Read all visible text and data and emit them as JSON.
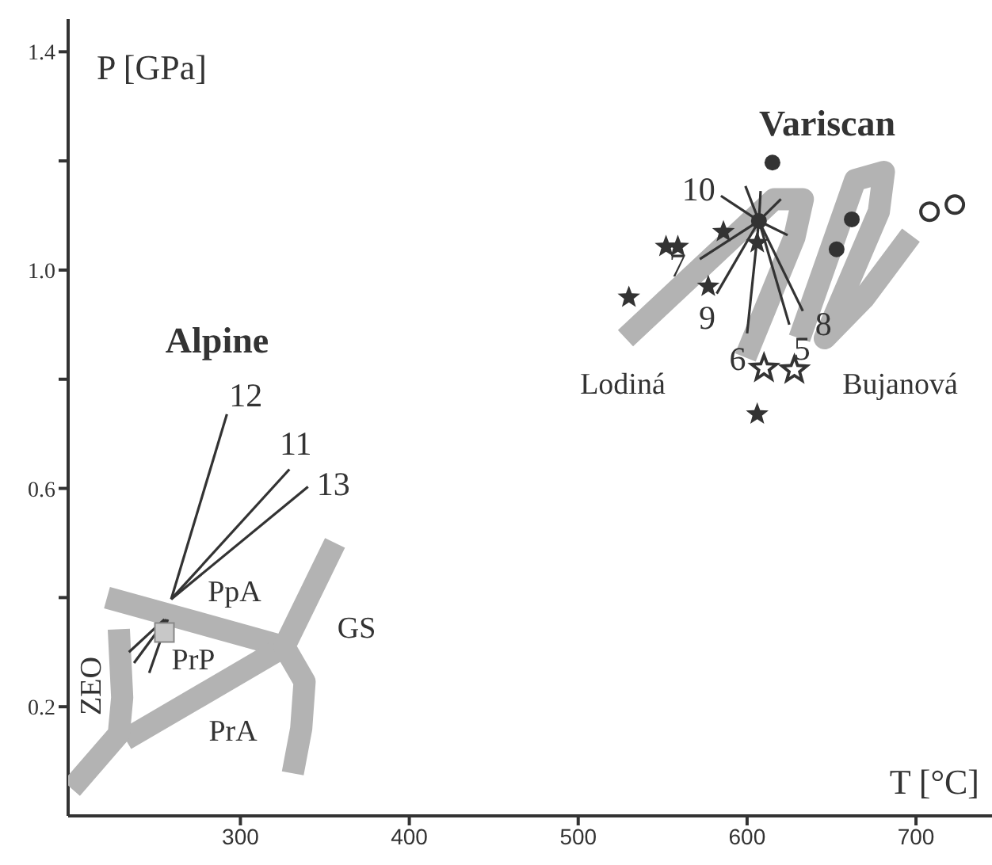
{
  "chart_data": {
    "type": "scatter",
    "xlabel": "T [°C]",
    "ylabel": "P [GPa]",
    "xlim": [
      198,
      745
    ],
    "ylim": [
      0,
      1.46
    ],
    "xticks": [
      300,
      400,
      500,
      600,
      700
    ],
    "yticks": [
      {
        "value": 0.2,
        "label": "0.2"
      },
      {
        "value": 0.4,
        "label": null
      },
      {
        "value": 0.6,
        "label": "0.6"
      },
      {
        "value": 0.8,
        "label": null
      },
      {
        "value": 1.0,
        "label": "1.0"
      },
      {
        "value": 1.2,
        "label": null
      },
      {
        "value": 1.4,
        "label": "1.4"
      }
    ],
    "series": [
      {
        "type": "line",
        "color": "#b3b3b3",
        "x": [
          221,
          326
        ],
        "values": [
          0.4,
          0.31
        ]
      },
      {
        "type": "line",
        "color": "#b3b3b3",
        "x": [
          232,
          326
        ],
        "values": [
          0.14,
          0.31
        ]
      },
      {
        "type": "line",
        "color": "#b3b3b3",
        "x": [
          356,
          326,
          338,
          336,
          331
        ],
        "values": [
          0.5,
          0.31,
          0.246,
          0.16,
          0.078
        ]
      },
      {
        "type": "line",
        "color": "#b3b3b3",
        "x": [
          228,
          230,
          228,
          200
        ],
        "values": [
          0.342,
          0.217,
          0.15,
          0.05
        ]
      },
      {
        "type": "line",
        "color": "#b3b3b3",
        "x": [
          528,
          616,
          633,
          628,
          599
        ],
        "values": [
          0.875,
          1.13,
          1.13,
          1.06,
          0.84
        ]
      },
      {
        "type": "line",
        "color": "#b3b3b3",
        "x": [
          631,
          664,
          681,
          678,
          646,
          669,
          697
        ],
        "values": [
          0.875,
          1.165,
          1.18,
          1.107,
          0.875,
          0.948,
          1.064
        ]
      },
      {
        "type": "line",
        "color": "#333333",
        "x": [
          607,
          584.5
        ],
        "values": [
          1.09,
          1.136
        ]
      },
      {
        "type": "line",
        "color": "#333333",
        "x": [
          607,
          572
        ],
        "values": [
          1.09,
          1.02
        ]
      },
      {
        "type": "line",
        "color": "#333333",
        "x": [
          607,
          582
        ],
        "values": [
          1.09,
          0.957
        ]
      },
      {
        "type": "line",
        "color": "#333333",
        "x": [
          607,
          600
        ],
        "values": [
          1.09,
          0.884
        ]
      },
      {
        "type": "line",
        "color": "#333333",
        "x": [
          607,
          625
        ],
        "values": [
          1.09,
          0.9
        ]
      },
      {
        "type": "line",
        "color": "#333333",
        "x": [
          607,
          633
        ],
        "values": [
          1.09,
          0.925
        ]
      },
      {
        "type": "line",
        "color": "#333333",
        "x": [
          607,
          599
        ],
        "values": [
          1.09,
          1.154
        ]
      },
      {
        "type": "line",
        "color": "#333333",
        "x": [
          607,
          608
        ],
        "values": [
          1.09,
          1.145
        ]
      },
      {
        "type": "line",
        "color": "#333333",
        "x": [
          607,
          620
        ],
        "values": [
          1.09,
          1.13
        ]
      },
      {
        "type": "line",
        "color": "#333333",
        "x": [
          607,
          624
        ],
        "values": [
          1.09,
          1.064
        ]
      },
      {
        "type": "line",
        "color": "#333333",
        "x": [
          259,
          292
        ],
        "values": [
          0.397,
          0.736
        ]
      },
      {
        "type": "line",
        "color": "#333333",
        "x": [
          259,
          329
        ],
        "values": [
          0.397,
          0.635
        ]
      },
      {
        "type": "line",
        "color": "#333333",
        "x": [
          259,
          340
        ],
        "values": [
          0.397,
          0.603
        ]
      },
      {
        "type": "line",
        "color": "#333333",
        "x": [
          255,
          234
        ],
        "values": [
          0.36,
          0.3
        ]
      },
      {
        "type": "line",
        "color": "#333333",
        "x": [
          256,
          237
        ],
        "values": [
          0.36,
          0.28
        ]
      },
      {
        "type": "line",
        "color": "#333333",
        "x": [
          257,
          246
        ],
        "values": [
          0.36,
          0.262
        ]
      },
      {
        "marker": "square",
        "color": "#c8c8c8",
        "x": [
          255
        ],
        "values": [
          0.336
        ]
      },
      {
        "marker": "circle",
        "color": "#333333",
        "x": [
          615,
          662,
          653,
          607
        ],
        "values": [
          1.197,
          1.093,
          1.038,
          1.09
        ]
      },
      {
        "marker": "circle",
        "color": "#ffffff",
        "x": [
          708,
          723
        ],
        "values": [
          1.107,
          1.12
        ]
      },
      {
        "marker": "star",
        "color": "#333333",
        "x": [
          586,
          552,
          559,
          577,
          530,
          606,
          606
        ],
        "values": [
          1.07,
          1.043,
          1.043,
          0.97,
          0.95,
          1.05,
          0.736
        ]
      },
      {
        "marker": "star",
        "color": "#ffffff",
        "x": [
          610,
          628
        ],
        "values": [
          0.82,
          0.817
        ]
      }
    ],
    "annotations": [
      "Alpine",
      "Variscan",
      "PpA",
      "PrP",
      "PrA",
      "GS",
      "ZEO",
      "Lodiná",
      "Bujanová",
      {
        "text": "10",
        "x": 584.5,
        "y": 1.136
      },
      {
        "text": "7",
        "x": 572,
        "y": 1.02
      },
      {
        "text": "9",
        "x": 582,
        "y": 0.957
      },
      {
        "text": "6",
        "x": 600,
        "y": 0.884
      },
      {
        "text": "5",
        "x": 625,
        "y": 0.9
      },
      {
        "text": "8",
        "x": 633,
        "y": 0.925
      },
      {
        "text": "12",
        "x": 292,
        "y": 0.736
      },
      {
        "text": "11",
        "x": 329,
        "y": 0.635
      },
      {
        "text": "13",
        "x": 340,
        "y": 0.603
      }
    ]
  }
}
